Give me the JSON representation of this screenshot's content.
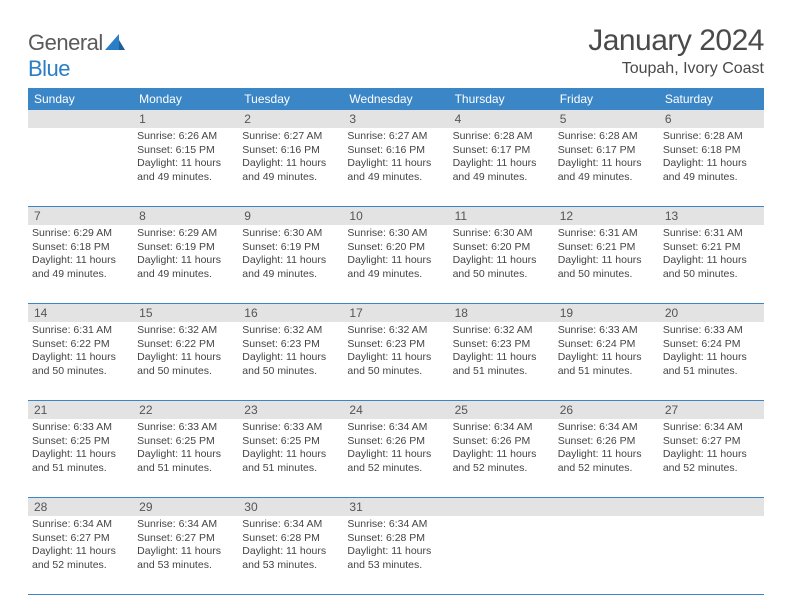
{
  "logo": {
    "text1": "General",
    "text2": "Blue"
  },
  "title": "January 2024",
  "location": "Toupah, Ivory Coast",
  "weekdays": [
    "Sunday",
    "Monday",
    "Tuesday",
    "Wednesday",
    "Thursday",
    "Friday",
    "Saturday"
  ],
  "colors": {
    "header_bg": "#3b86c6",
    "daynum_bg": "#e3e3e3",
    "text": "#444444",
    "title": "#4a4a4a"
  },
  "weeks": [
    {
      "nums": [
        "",
        "1",
        "2",
        "3",
        "4",
        "5",
        "6"
      ],
      "cells": [
        {
          "empty": true
        },
        {
          "sunrise": "6:26 AM",
          "sunset": "6:15 PM",
          "daylight": "11 hours and 49 minutes."
        },
        {
          "sunrise": "6:27 AM",
          "sunset": "6:16 PM",
          "daylight": "11 hours and 49 minutes."
        },
        {
          "sunrise": "6:27 AM",
          "sunset": "6:16 PM",
          "daylight": "11 hours and 49 minutes."
        },
        {
          "sunrise": "6:28 AM",
          "sunset": "6:17 PM",
          "daylight": "11 hours and 49 minutes."
        },
        {
          "sunrise": "6:28 AM",
          "sunset": "6:17 PM",
          "daylight": "11 hours and 49 minutes."
        },
        {
          "sunrise": "6:28 AM",
          "sunset": "6:18 PM",
          "daylight": "11 hours and 49 minutes."
        }
      ]
    },
    {
      "nums": [
        "7",
        "8",
        "9",
        "10",
        "11",
        "12",
        "13"
      ],
      "cells": [
        {
          "sunrise": "6:29 AM",
          "sunset": "6:18 PM",
          "daylight": "11 hours and 49 minutes."
        },
        {
          "sunrise": "6:29 AM",
          "sunset": "6:19 PM",
          "daylight": "11 hours and 49 minutes."
        },
        {
          "sunrise": "6:30 AM",
          "sunset": "6:19 PM",
          "daylight": "11 hours and 49 minutes."
        },
        {
          "sunrise": "6:30 AM",
          "sunset": "6:20 PM",
          "daylight": "11 hours and 49 minutes."
        },
        {
          "sunrise": "6:30 AM",
          "sunset": "6:20 PM",
          "daylight": "11 hours and 50 minutes."
        },
        {
          "sunrise": "6:31 AM",
          "sunset": "6:21 PM",
          "daylight": "11 hours and 50 minutes."
        },
        {
          "sunrise": "6:31 AM",
          "sunset": "6:21 PM",
          "daylight": "11 hours and 50 minutes."
        }
      ]
    },
    {
      "nums": [
        "14",
        "15",
        "16",
        "17",
        "18",
        "19",
        "20"
      ],
      "cells": [
        {
          "sunrise": "6:31 AM",
          "sunset": "6:22 PM",
          "daylight": "11 hours and 50 minutes."
        },
        {
          "sunrise": "6:32 AM",
          "sunset": "6:22 PM",
          "daylight": "11 hours and 50 minutes."
        },
        {
          "sunrise": "6:32 AM",
          "sunset": "6:23 PM",
          "daylight": "11 hours and 50 minutes."
        },
        {
          "sunrise": "6:32 AM",
          "sunset": "6:23 PM",
          "daylight": "11 hours and 50 minutes."
        },
        {
          "sunrise": "6:32 AM",
          "sunset": "6:23 PM",
          "daylight": "11 hours and 51 minutes."
        },
        {
          "sunrise": "6:33 AM",
          "sunset": "6:24 PM",
          "daylight": "11 hours and 51 minutes."
        },
        {
          "sunrise": "6:33 AM",
          "sunset": "6:24 PM",
          "daylight": "11 hours and 51 minutes."
        }
      ]
    },
    {
      "nums": [
        "21",
        "22",
        "23",
        "24",
        "25",
        "26",
        "27"
      ],
      "cells": [
        {
          "sunrise": "6:33 AM",
          "sunset": "6:25 PM",
          "daylight": "11 hours and 51 minutes."
        },
        {
          "sunrise": "6:33 AM",
          "sunset": "6:25 PM",
          "daylight": "11 hours and 51 minutes."
        },
        {
          "sunrise": "6:33 AM",
          "sunset": "6:25 PM",
          "daylight": "11 hours and 51 minutes."
        },
        {
          "sunrise": "6:34 AM",
          "sunset": "6:26 PM",
          "daylight": "11 hours and 52 minutes."
        },
        {
          "sunrise": "6:34 AM",
          "sunset": "6:26 PM",
          "daylight": "11 hours and 52 minutes."
        },
        {
          "sunrise": "6:34 AM",
          "sunset": "6:26 PM",
          "daylight": "11 hours and 52 minutes."
        },
        {
          "sunrise": "6:34 AM",
          "sunset": "6:27 PM",
          "daylight": "11 hours and 52 minutes."
        }
      ]
    },
    {
      "nums": [
        "28",
        "29",
        "30",
        "31",
        "",
        "",
        ""
      ],
      "cells": [
        {
          "sunrise": "6:34 AM",
          "sunset": "6:27 PM",
          "daylight": "11 hours and 52 minutes."
        },
        {
          "sunrise": "6:34 AM",
          "sunset": "6:27 PM",
          "daylight": "11 hours and 53 minutes."
        },
        {
          "sunrise": "6:34 AM",
          "sunset": "6:28 PM",
          "daylight": "11 hours and 53 minutes."
        },
        {
          "sunrise": "6:34 AM",
          "sunset": "6:28 PM",
          "daylight": "11 hours and 53 minutes."
        },
        {
          "empty": true
        },
        {
          "empty": true
        },
        {
          "empty": true
        }
      ]
    }
  ],
  "labels": {
    "sunrise": "Sunrise:",
    "sunset": "Sunset:",
    "daylight": "Daylight:"
  }
}
